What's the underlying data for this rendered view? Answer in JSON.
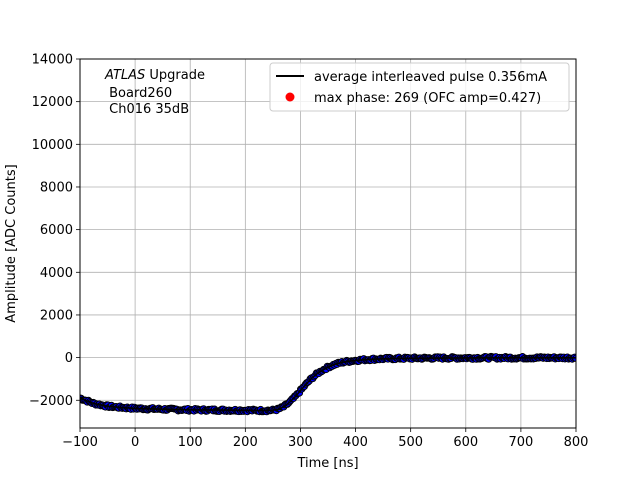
{
  "chart_data": {
    "type": "scatter",
    "title": "",
    "xlabel": "Time [ns]",
    "ylabel": "Amplitude [ADC Counts]",
    "xlim": [
      -100,
      800
    ],
    "ylim": [
      -3300,
      14000
    ],
    "xticks": [
      -100,
      0,
      100,
      200,
      300,
      400,
      500,
      600,
      700,
      800
    ],
    "yticks": [
      -2000,
      0,
      2000,
      4000,
      6000,
      8000,
      10000,
      12000,
      14000
    ],
    "xtick_labels": [
      "−100",
      "0",
      "100",
      "200",
      "300",
      "400",
      "500",
      "600",
      "700",
      "800"
    ],
    "ytick_labels": [
      "−2000",
      "0",
      "2000",
      "4000",
      "6000",
      "8000",
      "10000",
      "12000",
      "14000"
    ],
    "grid": true,
    "legend_position": "top-right",
    "annotation": {
      "lines": [
        "ATLAS",
        " Upgrade",
        " Board260",
        " Ch016 35dB"
      ]
    },
    "series": [
      {
        "name": "average interleaved pulse 0.356mA",
        "kind": "line",
        "color": "#000000",
        "x": [
          -100,
          -75,
          -50,
          -25,
          0,
          25,
          50,
          100,
          150,
          200,
          230,
          250,
          260,
          270,
          280,
          290,
          300,
          310,
          320,
          330,
          340,
          350,
          360,
          370,
          380,
          400,
          420,
          440,
          460,
          480,
          500,
          550,
          600,
          650,
          700,
          750,
          800
        ],
        "y": [
          -1900,
          -2150,
          -2280,
          -2340,
          -2380,
          -2400,
          -2420,
          -2450,
          -2460,
          -2470,
          -2480,
          -2470,
          -2420,
          -2300,
          -2100,
          -1850,
          -1550,
          -1250,
          -980,
          -760,
          -590,
          -450,
          -340,
          -260,
          -200,
          -130,
          -90,
          -65,
          -50,
          -40,
          -30,
          -20,
          -15,
          -10,
          -10,
          -10,
          -10
        ]
      },
      {
        "name": "max phase: 269 (OFC amp=0.427)",
        "kind": "marker",
        "color": "#ff0000",
        "x": [],
        "y": []
      },
      {
        "name": "",
        "kind": "scatter-band",
        "color": "#0000ff",
        "edgecolor": "#000000",
        "x": [
          -100,
          -75,
          -50,
          -25,
          0,
          25,
          50,
          100,
          150,
          200,
          230,
          250,
          260,
          270,
          280,
          290,
          300,
          310,
          320,
          330,
          340,
          350,
          360,
          370,
          380,
          400,
          420,
          440,
          460,
          480,
          500,
          550,
          600,
          650,
          700,
          750,
          800
        ],
        "y": [
          -1900,
          -2150,
          -2280,
          -2340,
          -2380,
          -2400,
          -2420,
          -2450,
          -2460,
          -2470,
          -2480,
          -2470,
          -2420,
          -2300,
          -2100,
          -1850,
          -1550,
          -1250,
          -980,
          -760,
          -590,
          -450,
          -340,
          -260,
          -200,
          -130,
          -90,
          -65,
          -50,
          -40,
          -30,
          -20,
          -15,
          -10,
          -10,
          -10,
          -10
        ]
      }
    ]
  }
}
